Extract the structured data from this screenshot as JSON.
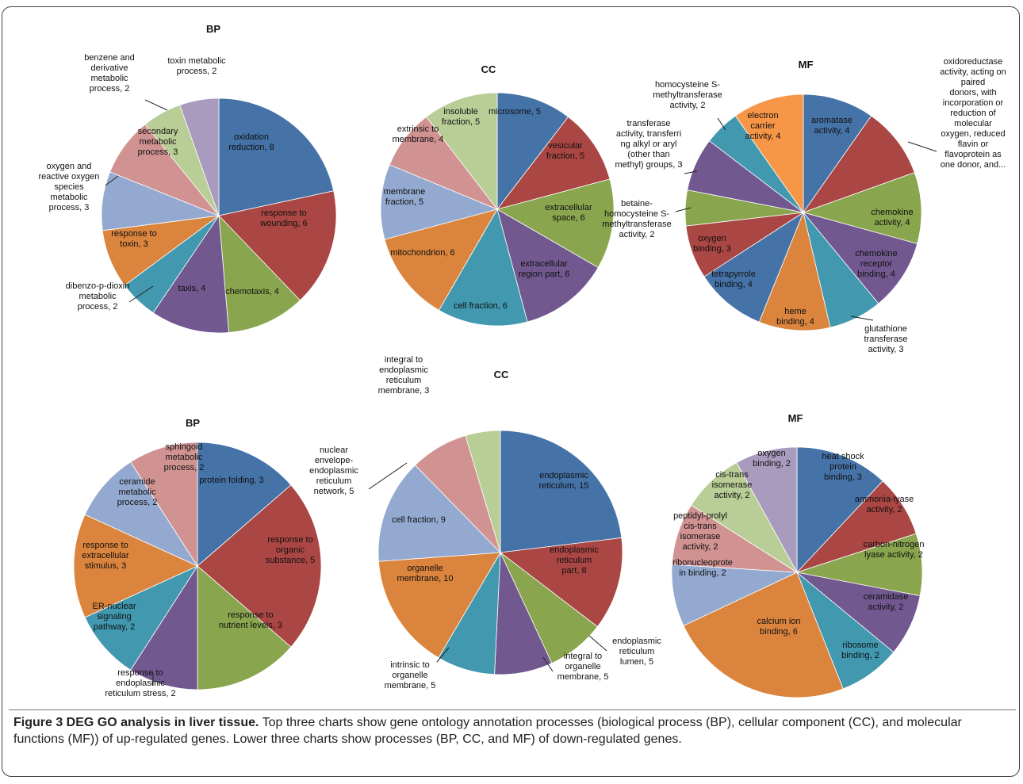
{
  "caption": {
    "title": "Figure 3 DEG GO analysis in liver tissue.",
    "text": " Top three charts show gene ontology annotation processes (biological process (BP), cellular component (CC), and molecular functions (MF)) of up-regulated genes. Lower three charts show processes (BP, CC, and MF) of down-regulated genes."
  },
  "chart_data": [
    {
      "type": "pie",
      "title": "BP",
      "slices": [
        {
          "label": "oxidation reduction, 8",
          "value": 8,
          "color": "#4572A7"
        },
        {
          "label": "response to wounding, 6",
          "value": 6,
          "color": "#AA4643"
        },
        {
          "label": "chemotaxis, 4",
          "value": 4,
          "color": "#89A54E"
        },
        {
          "label": "taxis, 4",
          "value": 4,
          "color": "#71588F"
        },
        {
          "label": "dibenzo-p-dioxin metabolic process, 2",
          "value": 2,
          "color": "#4198AF"
        },
        {
          "label": "response to toxin, 3",
          "value": 3,
          "color": "#DB843D"
        },
        {
          "label": "oxygen and reactive oxygen species metabolic process, 3",
          "value": 3,
          "color": "#93A9CF"
        },
        {
          "label": "secondary metabolic process, 3",
          "value": 3,
          "color": "#D19392"
        },
        {
          "label": "benzene and derivative metabolic process, 2",
          "value": 2,
          "color": "#B9CD96"
        },
        {
          "label": "toxin metabolic process, 2",
          "value": 2,
          "color": "#A99BBD"
        }
      ]
    },
    {
      "type": "pie",
      "title": "CC",
      "slices": [
        {
          "label": "microsome, 5",
          "value": 5,
          "color": "#4572A7"
        },
        {
          "label": "vesicular fraction, 5",
          "value": 5,
          "color": "#AA4643"
        },
        {
          "label": "extracellular space, 6",
          "value": 6,
          "color": "#89A54E"
        },
        {
          "label": "extracellular region part, 6",
          "value": 6,
          "color": "#71588F"
        },
        {
          "label": "cell fraction, 6",
          "value": 6,
          "color": "#4198AF"
        },
        {
          "label": "mitochondrion, 6",
          "value": 6,
          "color": "#DB843D"
        },
        {
          "label": "membrane fraction, 5",
          "value": 5,
          "color": "#93A9CF"
        },
        {
          "label": "extrinsic to membrane, 4",
          "value": 4,
          "color": "#D19392"
        },
        {
          "label": "insoluble fraction, 5",
          "value": 5,
          "color": "#B9CD96"
        }
      ]
    },
    {
      "type": "pie",
      "title": "MF",
      "slices": [
        {
          "label": "aromatase activity, 4",
          "value": 4,
          "color": "#4572A7"
        },
        {
          "label": "oxidoreductase activity, acting on paired donors, with incorporation or reduction of molecular oxygen, reduced flavin or flavoprotein as one donor, and...",
          "value": 4,
          "color": "#AA4643"
        },
        {
          "label": "chemokine activity, 4",
          "value": 4,
          "color": "#89A54E"
        },
        {
          "label": "chemokine receptor binding, 4",
          "value": 4,
          "color": "#71588F"
        },
        {
          "label": "glutathione transferase activity, 3",
          "value": 3,
          "color": "#4198AF"
        },
        {
          "label": "heme binding, 4",
          "value": 4,
          "color": "#DB843D"
        },
        {
          "label": "tetrapyrrole binding, 4",
          "value": 4,
          "color": "#4572A7"
        },
        {
          "label": "oxygen binding, 3",
          "value": 3,
          "color": "#AA4643"
        },
        {
          "label": "betaine-homocysteine S-methyltransferase activity, 2",
          "value": 2,
          "color": "#89A54E"
        },
        {
          "label": "transferase activity, transferring alkyl or aryl (other than methyl) groups, 3",
          "value": 3,
          "color": "#71588F"
        },
        {
          "label": "homocysteine S-methyltransferase activity, 2",
          "value": 2,
          "color": "#4198AF"
        },
        {
          "label": "electron carrier activity, 4",
          "value": 4,
          "color": "#F79646"
        }
      ]
    },
    {
      "type": "pie",
      "title": "BP",
      "slices": [
        {
          "label": "protein folding, 3",
          "value": 3,
          "color": "#4572A7"
        },
        {
          "label": "response to organic substance, 5",
          "value": 5,
          "color": "#AA4643"
        },
        {
          "label": "response to nutrient levels, 3",
          "value": 3,
          "color": "#89A54E"
        },
        {
          "label": "response to endoplasmic reticulum stress, 2",
          "value": 2,
          "color": "#71588F"
        },
        {
          "label": "ER-nuclear signaling pathway, 2",
          "value": 2,
          "color": "#4198AF"
        },
        {
          "label": "response to extracellular stimulus, 3",
          "value": 3,
          "color": "#DB843D"
        },
        {
          "label": "ceramide metabolic process, 2",
          "value": 2,
          "color": "#93A9CF"
        },
        {
          "label": "sphingoid metabolic process, 2",
          "value": 2,
          "color": "#D19392"
        }
      ]
    },
    {
      "type": "pie",
      "title": "CC",
      "slices": [
        {
          "label": "endoplasmic reticulum, 15",
          "value": 15,
          "color": "#4572A7"
        },
        {
          "label": "endoplasmic reticulum part, 8",
          "value": 8,
          "color": "#AA4643"
        },
        {
          "label": "endoplasmic reticulum lumen, 5",
          "value": 5,
          "color": "#89A54E"
        },
        {
          "label": "integral to organelle membrane, 5",
          "value": 5,
          "color": "#71588F"
        },
        {
          "label": "intrinsic to organelle membrane, 5",
          "value": 5,
          "color": "#4198AF"
        },
        {
          "label": "organelle membrane, 10",
          "value": 10,
          "color": "#DB843D"
        },
        {
          "label": "cell fraction, 9",
          "value": 9,
          "color": "#93A9CF"
        },
        {
          "label": "nuclear envelope-endoplasmic reticulum network, 5",
          "value": 5,
          "color": "#D19392"
        },
        {
          "label": "integral to endoplasmic reticulum membrane, 3",
          "value": 3,
          "color": "#B9CD96"
        }
      ]
    },
    {
      "type": "pie",
      "title": "MF",
      "slices": [
        {
          "label": "heat shock protein binding, 3",
          "value": 3,
          "color": "#4572A7"
        },
        {
          "label": "ammonia-lyase activity, 2",
          "value": 2,
          "color": "#AA4643"
        },
        {
          "label": "carbon-nitrogen lyase activity, 2",
          "value": 2,
          "color": "#89A54E"
        },
        {
          "label": "ceramidase activity, 2",
          "value": 2,
          "color": "#71588F"
        },
        {
          "label": "ribosome binding, 2",
          "value": 2,
          "color": "#4198AF"
        },
        {
          "label": "calcium ion binding, 6",
          "value": 6,
          "color": "#DB843D"
        },
        {
          "label": "ribonucleoprotein binding, 2",
          "value": 2,
          "color": "#93A9CF"
        },
        {
          "label": "peptidyl-prolyl cis-trans isomerase activity, 2",
          "value": 2,
          "color": "#D19392"
        },
        {
          "label": "cis-trans isomerase activity, 2",
          "value": 2,
          "color": "#B9CD96"
        },
        {
          "label": "oxygen binding, 2",
          "value": 2,
          "color": "#A99BBD"
        }
      ]
    }
  ]
}
